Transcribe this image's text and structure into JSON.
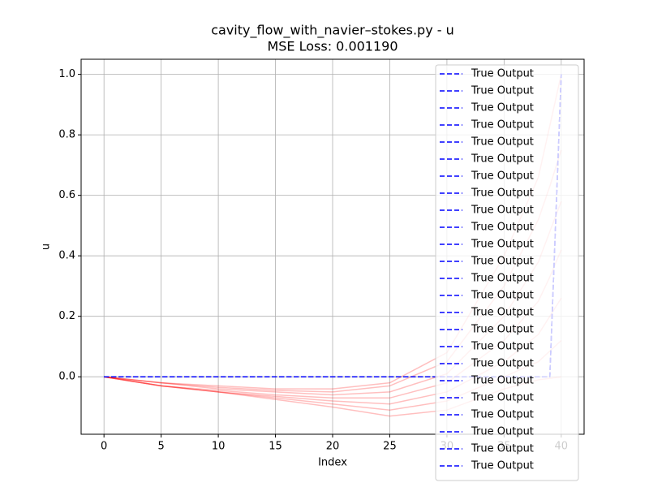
{
  "chart_data": {
    "type": "line",
    "title": "cavity_flow_with_navier–stokes.py - u",
    "subtitle": "MSE Loss: 0.001190",
    "x_label": "Index",
    "y_label": "u",
    "x": [
      0,
      5,
      10,
      15,
      20,
      25,
      30,
      35,
      38,
      39,
      40
    ],
    "xlim": [
      -2,
      42
    ],
    "xticks": [
      0,
      5,
      10,
      15,
      20,
      25,
      30,
      35,
      40
    ],
    "ylim": [
      -0.19,
      1.05
    ],
    "yticks": [
      {
        "value": 0,
        "label": "0.0"
      },
      {
        "value": 0.2,
        "label": "0.2"
      },
      {
        "value": 0.4,
        "label": "0.4"
      },
      {
        "value": 0.6,
        "label": "0.6"
      },
      {
        "value": 0.8,
        "label": "0.8"
      },
      {
        "value": 1,
        "label": "1.0"
      }
    ],
    "grid": true,
    "legend": "upper right",
    "series": [
      {
        "color": "#ff0000",
        "alpha": 0.25,
        "values": [
          0,
          -0.03,
          -0.05,
          -0.075,
          -0.1,
          -0.13,
          -0.11,
          -0.04,
          -0.01,
          -0.005,
          0
        ]
      },
      {
        "color": "#ff0000",
        "alpha": 0.25,
        "values": [
          0,
          -0.03,
          -0.05,
          -0.07,
          -0.09,
          -0.11,
          -0.08,
          0.0,
          0.05,
          0.085,
          0.12
        ]
      },
      {
        "color": "#ff0000",
        "alpha": 0.25,
        "values": [
          0,
          -0.03,
          -0.05,
          -0.065,
          -0.08,
          -0.09,
          -0.05,
          0.05,
          0.14,
          0.2,
          0.26
        ]
      },
      {
        "color": "#ff0000",
        "alpha": 0.25,
        "values": [
          0,
          -0.03,
          -0.045,
          -0.06,
          -0.07,
          -0.07,
          -0.02,
          0.12,
          0.25,
          0.33,
          0.42
        ]
      },
      {
        "color": "#ff0000",
        "alpha": 0.25,
        "values": [
          0,
          -0.02,
          -0.04,
          -0.05,
          -0.06,
          -0.05,
          0.01,
          0.2,
          0.38,
          0.48,
          0.58
        ]
      },
      {
        "color": "#ff0000",
        "alpha": 0.25,
        "values": [
          0,
          -0.02,
          -0.035,
          -0.045,
          -0.05,
          -0.03,
          0.05,
          0.3,
          0.52,
          0.63,
          0.75
        ]
      },
      {
        "color": "#ff0000",
        "alpha": 0.25,
        "values": [
          0,
          -0.02,
          -0.03,
          -0.04,
          -0.04,
          -0.02,
          0.08,
          0.4,
          0.66,
          0.83,
          1.0
        ]
      },
      {
        "name": "True Output",
        "color": "#0000ff",
        "alpha": 0.2,
        "dashed": true,
        "values": [
          0,
          0,
          0,
          0,
          0,
          0,
          0,
          0,
          0,
          0,
          1.0
        ]
      },
      {
        "name": "True Output",
        "color": "#0000ff",
        "alpha": 0.2,
        "dashed": true,
        "values": [
          0,
          0,
          0,
          0,
          0,
          0,
          0,
          0,
          0,
          0,
          1.0
        ]
      },
      {
        "name": "True Output",
        "color": "#0000ff",
        "alpha": 0.2,
        "dashed": true,
        "values": [
          0,
          0,
          0,
          0,
          0,
          0,
          0,
          0,
          0,
          0,
          1.0
        ]
      },
      {
        "name": "True Output",
        "color": "#0000ff",
        "alpha": 0.2,
        "dashed": true,
        "values": [
          0,
          0,
          0,
          0,
          0,
          0,
          0,
          0,
          0,
          0,
          1.0
        ]
      },
      {
        "name": "True Output",
        "color": "#0000ff",
        "alpha": 0.2,
        "dashed": true,
        "values": [
          0,
          0,
          0,
          0,
          0,
          0,
          0,
          0,
          0,
          0,
          1.0
        ]
      },
      {
        "name": "True Output",
        "color": "#0000ff",
        "alpha": 0.2,
        "dashed": true,
        "values": [
          0,
          0,
          0,
          0,
          0,
          0,
          0,
          0,
          0,
          0,
          1.0
        ]
      },
      {
        "name": "True Output",
        "color": "#0000ff",
        "alpha": 0.2,
        "dashed": true,
        "values": [
          0,
          0,
          0,
          0,
          0,
          0,
          0,
          0,
          0,
          0,
          1.0
        ]
      },
      {
        "name": "True Output",
        "color": "#0000ff",
        "alpha": 0.2,
        "dashed": true,
        "values": [
          0,
          0,
          0,
          0,
          0,
          0,
          0,
          0,
          0,
          0,
          1.0
        ]
      },
      {
        "name": "True Output",
        "color": "#0000ff",
        "alpha": 0.2,
        "dashed": true,
        "values": [
          0,
          0,
          0,
          0,
          0,
          0,
          0,
          0,
          0,
          0,
          1.0
        ]
      },
      {
        "name": "True Output",
        "color": "#0000ff",
        "alpha": 0.2,
        "dashed": true,
        "values": [
          0,
          0,
          0,
          0,
          0,
          0,
          0,
          0,
          0,
          0,
          1.0
        ]
      },
      {
        "name": "True Output",
        "color": "#0000ff",
        "alpha": 0.2,
        "dashed": true,
        "values": [
          0,
          0,
          0,
          0,
          0,
          0,
          0,
          0,
          0,
          0,
          1.0
        ]
      },
      {
        "name": "True Output",
        "color": "#0000ff",
        "alpha": 0.2,
        "dashed": true,
        "values": [
          0,
          0,
          0,
          0,
          0,
          0,
          0,
          0,
          0,
          0,
          1.0
        ]
      },
      {
        "name": "True Output",
        "color": "#0000ff",
        "alpha": 0.2,
        "dashed": true,
        "values": [
          0,
          0,
          0,
          0,
          0,
          0,
          0,
          0,
          0,
          0,
          1.0
        ]
      },
      {
        "name": "True Output",
        "color": "#0000ff",
        "alpha": 0.2,
        "dashed": true,
        "values": [
          0,
          0,
          0,
          0,
          0,
          0,
          0,
          0,
          0,
          0,
          1.0
        ]
      },
      {
        "name": "True Output",
        "color": "#0000ff",
        "alpha": 0.2,
        "dashed": true,
        "values": [
          0,
          0,
          0,
          0,
          0,
          0,
          0,
          0,
          0,
          0,
          1.0
        ]
      },
      {
        "name": "True Output",
        "color": "#0000ff",
        "alpha": 0.2,
        "dashed": true,
        "values": [
          0,
          0,
          0,
          0,
          0,
          0,
          0,
          0,
          0,
          0,
          1.0
        ]
      },
      {
        "name": "True Output",
        "color": "#0000ff",
        "alpha": 0.2,
        "dashed": true,
        "values": [
          0,
          0,
          0,
          0,
          0,
          0,
          0,
          0,
          0,
          0,
          1.0
        ]
      },
      {
        "name": "True Output",
        "color": "#0000ff",
        "alpha": 0.2,
        "dashed": true,
        "values": [
          0,
          0,
          0,
          0,
          0,
          0,
          0,
          0,
          0,
          0,
          1.0
        ]
      },
      {
        "name": "True Output",
        "color": "#0000ff",
        "alpha": 0.2,
        "dashed": true,
        "values": [
          0,
          0,
          0,
          0,
          0,
          0,
          0,
          0,
          0,
          0,
          1.0
        ]
      },
      {
        "name": "True Output",
        "color": "#0000ff",
        "alpha": 0.2,
        "dashed": true,
        "values": [
          0,
          0,
          0,
          0,
          0,
          0,
          0,
          0,
          0,
          0,
          1.0
        ]
      },
      {
        "name": "True Output",
        "color": "#0000ff",
        "alpha": 0.2,
        "dashed": true,
        "values": [
          0,
          0,
          0,
          0,
          0,
          0,
          0,
          0,
          0,
          0,
          1.0
        ]
      },
      {
        "name": "True Output",
        "color": "#0000ff",
        "alpha": 0.2,
        "dashed": true,
        "values": [
          0,
          0,
          0,
          0,
          0,
          0,
          0,
          0,
          0,
          0,
          1.0
        ]
      },
      {
        "name": "True Output",
        "color": "#0000ff",
        "alpha": 0.2,
        "dashed": true,
        "values": [
          0,
          0,
          0,
          0,
          0,
          0,
          0,
          0,
          0,
          0,
          1.0
        ]
      },
      {
        "name": "True Output",
        "color": "#0000ff",
        "alpha": 0.2,
        "dashed": true,
        "values": [
          0,
          0,
          0,
          0,
          0,
          0,
          0,
          0,
          0,
          0,
          1.0
        ]
      }
    ]
  }
}
